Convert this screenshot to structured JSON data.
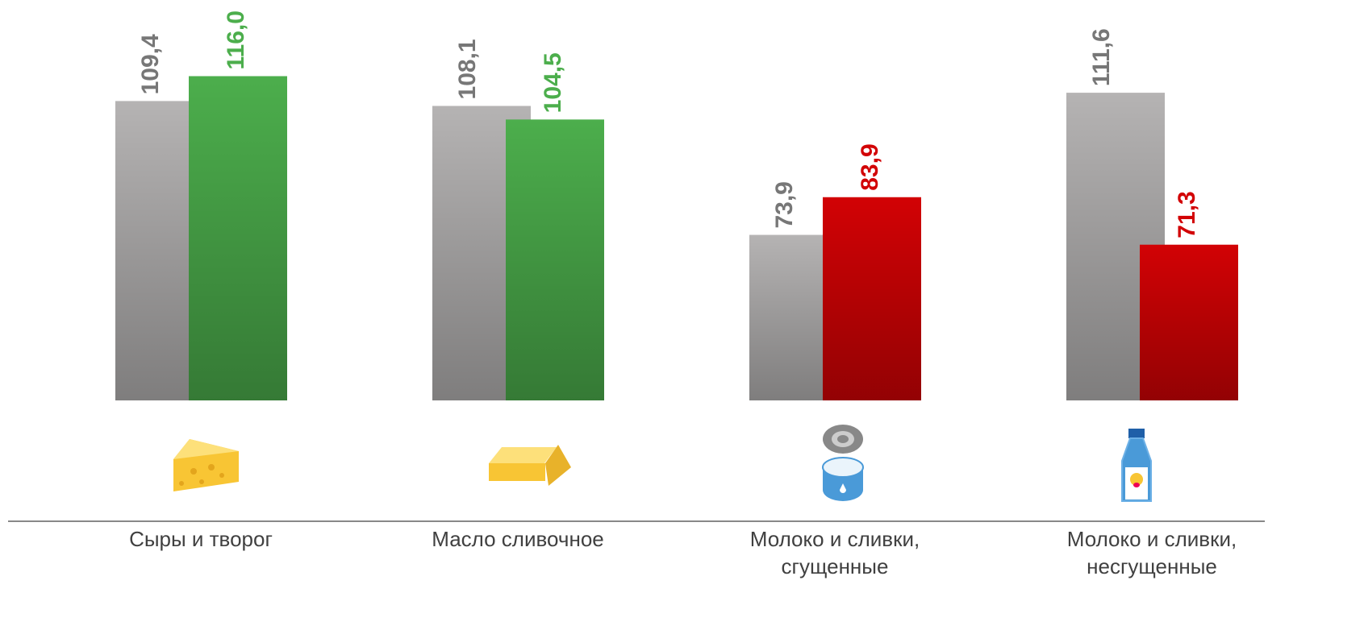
{
  "chart_data": {
    "type": "bar",
    "categories": [
      "Сыры и творог",
      "Масло сливочное",
      "Молоко и сливки, сгущенные",
      "Молоко и сливки, несгущенные"
    ],
    "series": [
      {
        "color": "#b5b3b3",
        "values": [
          109.4,
          108.1,
          73.9,
          111.6
        ],
        "value_labels": [
          "109,4",
          "108,1",
          "73,9",
          "111,6"
        ],
        "label_color": "#777777"
      },
      {
        "colors": [
          "#4cae4c",
          "#4cae4c",
          "#d20205",
          "#d20205"
        ],
        "values": [
          116.0,
          104.5,
          83.9,
          71.3
        ],
        "value_labels": [
          "116,0",
          "104,5",
          "83,9",
          "71,3"
        ]
      }
    ],
    "ylim": [
      30,
      130
    ]
  }
}
